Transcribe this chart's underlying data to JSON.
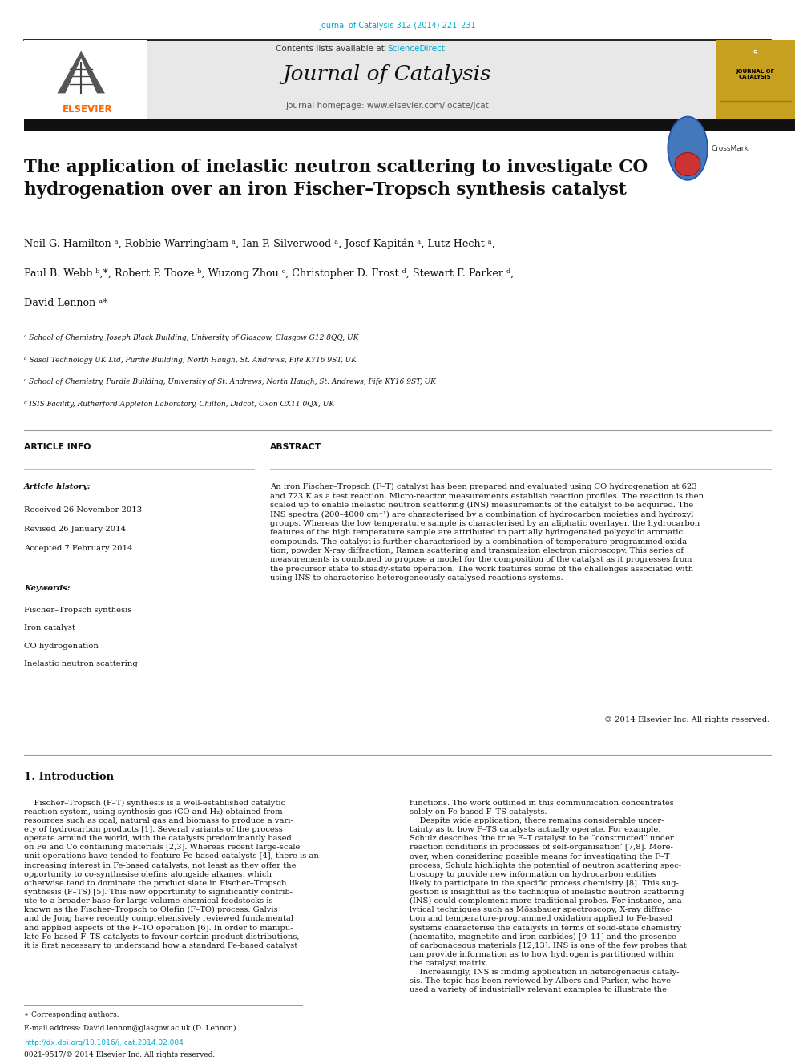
{
  "page_width": 9.92,
  "page_height": 13.23,
  "background_color": "#ffffff",
  "journal_ref_color": "#00aacc",
  "journal_ref": "Journal of Catalysis 312 (2014) 221–231",
  "header_bg_color": "#e8e8e8",
  "journal_title": "Journal of Catalysis",
  "contents_text": "Contents lists available at ",
  "sciencedirect_text": "ScienceDirect",
  "sciencedirect_color": "#00aacc",
  "homepage_text": "journal homepage: www.elsevier.com/locate/jcat",
  "elsevier_color": "#ff6600",
  "article_title": "The application of inelastic neutron scattering to investigate CO\nhydrogenation over an iron Fischer–Tropsch synthesis catalyst",
  "affil_a": "ᵃ School of Chemistry, Joseph Black Building, University of Glasgow, Glasgow G12 8QQ, UK",
  "affil_b": "ᵇ Sasol Technology UK Ltd, Purdie Building, North Haugh, St. Andrews, Fife KY16 9ST, UK",
  "affil_c": "ᶜ School of Chemistry, Purdie Building, University of St. Andrews, North Haugh, St. Andrews, Fife KY16 9ST, UK",
  "affil_d": "ᵈ ISIS Facility, Rutherford Appleton Laboratory, Chilton, Didcot, Oxon OX11 0QX, UK",
  "article_info_title": "ARTICLE INFO",
  "abstract_title": "ABSTRACT",
  "article_history_label": "Article history:",
  "received": "Received 26 November 2013",
  "revised": "Revised 26 January 2014",
  "accepted": "Accepted 7 February 2014",
  "keywords_label": "Keywords:",
  "keyword1": "Fischer–Tropsch synthesis",
  "keyword2": "Iron catalyst",
  "keyword3": "CO hydrogenation",
  "keyword4": "Inelastic neutron scattering",
  "abstract_text": "An iron Fischer–Tropsch (F–T) catalyst has been prepared and evaluated using CO hydrogenation at 623\nand 723 K as a test reaction. Micro-reactor measurements establish reaction profiles. The reaction is then\nscaled up to enable inelastic neutron scattering (INS) measurements of the catalyst to be acquired. The\nINS spectra (200–4000 cm⁻¹) are characterised by a combination of hydrocarbon moieties and hydroxyl\ngroups. Whereas the low temperature sample is characterised by an aliphatic overlayer, the hydrocarbon\nfeatures of the high temperature sample are attributed to partially hydrogenated polycyclic aromatic\ncompounds. The catalyst is further characterised by a combination of temperature-programmed oxida-\ntion, powder X-ray diffraction, Raman scattering and transmission electron microscopy. This series of\nmeasurements is combined to propose a model for the composition of the catalyst as it progresses from\nthe precursor state to steady-state operation. The work features some of the challenges associated with\nusing INS to characterise heterogeneously catalysed reactions systems.",
  "copyright_text": "© 2014 Elsevier Inc. All rights reserved.",
  "intro_title": "1. Introduction",
  "intro_col1": "    Fischer–Tropsch (F–T) synthesis is a well-established catalytic\nreaction system, using synthesis gas (CO and H₂) obtained from\nresources such as coal, natural gas and biomass to produce a vari-\nety of hydrocarbon products [1]. Several variants of the process\noperate around the world, with the catalysts predominantly based\non Fe and Co containing materials [2,3]. Whereas recent large-scale\nunit operations have tended to feature Fe-based catalysts [4], there is an\nincreasing interest in Fe-based catalysts, not least as they offer the\nopportunity to co-synthesise olefins alongside alkanes, which\notherwise tend to dominate the product slate in Fischer–Tropsch\nsynthesis (F–TS) [5]. This new opportunity to significantly contrib-\nute to a broader base for large volume chemical feedstocks is\nknown as the Fischer–Tropsch to Olefin (F–TO) process. Galvis\nand de Jong have recently comprehensively reviewed fundamental\nand applied aspects of the F–TO operation [6]. In order to manipu-\nlate Fe-based F–TS catalysts to favour certain product distributions,\nit is first necessary to understand how a standard Fe-based catalyst",
  "intro_col2": "functions. The work outlined in this communication concentrates\nsolely on Fe-based F–TS catalysts.\n    Despite wide application, there remains considerable uncer-\ntainty as to how F–TS catalysts actually operate. For example,\nSchulz describes ‘the true F–T catalyst to be “constructed” under\nreaction conditions in processes of self-organisation’ [7,8]. More-\nover, when considering possible means for investigating the F–T\nprocess, Schulz highlights the potential of neutron scattering spec-\ntroscopy to provide new information on hydrocarbon entities\nlikely to participate in the specific process chemistry [8]. This sug-\ngestion is insightful as the technique of inelastic neutron scattering\n(INS) could complement more traditional probes. For instance, ana-\nlytical techniques such as Mössbauer spectroscopy, X-ray diffrac-\ntion and temperature-programmed oxidation applied to Fe-based\nsystems characterise the catalysts in terms of solid-state chemistry\n(haematite, magnetite and iron carbides) [9–11] and the presence\nof carbonaceous materials [12,13]. INS is one of the few probes that\ncan provide information as to how hydrogen is partitioned within\nthe catalyst matrix.\n    Increasingly, INS is finding application in heterogeneous cataly-\nsis. The topic has been reviewed by Albers and Parker, who have\nused a variety of industrially relevant examples to illustrate the",
  "footer_doi": "http://dx.doi.org/10.1016/j.jcat.2014.02.004",
  "footer_issn": "0021-9517/© 2014 Elsevier Inc. All rights reserved.",
  "corresponding_note": "∗ Corresponding authors.",
  "email_note": "E-mail address: David.lennon@glasgow.ac.uk (D. Lennon).",
  "yellow_bg": "#c8a020"
}
